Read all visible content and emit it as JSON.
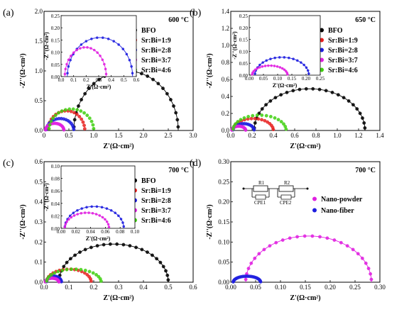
{
  "chart_data": [
    {
      "type": "scatter",
      "panel_label": "(a)",
      "annotation": "600 °C",
      "xlabel": "Z'(Ω·cm²)",
      "ylabel": "-Z''(Ω·cm²)",
      "xlim": [
        0,
        3.0
      ],
      "ylim": [
        0,
        2.0
      ],
      "xticks": [
        "0",
        "0.5",
        "1.0",
        "1.5",
        "2.0",
        "2.5",
        "3.0"
      ],
      "yticks": [
        "0.0",
        "0.5",
        "1.0",
        "1.5",
        "2.0"
      ],
      "legend_position": "top-right",
      "series": [
        {
          "name": "BFO",
          "color": "#000000",
          "arc": [
            0.6,
            2.7,
            1.0
          ]
        },
        {
          "name": "Sr:Bi=1:9",
          "color": "#e8201f",
          "arc": [
            0.08,
            0.82,
            0.33
          ]
        },
        {
          "name": "Sr:Bi=2:8",
          "color": "#1f1fdf",
          "arc": [
            0.05,
            0.6,
            0.2
          ]
        },
        {
          "name": "Sr:Bi=3:7",
          "color": "#e020e0",
          "arc": [
            0.03,
            0.4,
            0.12
          ]
        },
        {
          "name": "Sr:Bi=4:6",
          "color": "#40d010",
          "arc": [
            0.1,
            1.0,
            0.36
          ]
        }
      ],
      "inset": {
        "xlabel": "Z'(Ω·cm²)",
        "ylabel": "-Z''(Ω·cm²)",
        "xlim": [
          0,
          0.6
        ],
        "ylim": [
          0,
          0.25
        ],
        "xticks": [
          "0.0",
          "0.1",
          "0.2",
          "0.3",
          "0.4",
          "0.5",
          "0.6"
        ],
        "yticks": [
          "0.00",
          "0.05",
          "0.10",
          "0.15",
          "0.20",
          "0.25"
        ],
        "series": [
          {
            "name": "Sr:Bi=2:8",
            "color": "#1f1fdf",
            "arc": [
              0.05,
              0.57,
              0.16
            ]
          },
          {
            "name": "Sr:Bi=3:7",
            "color": "#e020e0",
            "arc": [
              0.03,
              0.36,
              0.12
            ]
          }
        ]
      }
    },
    {
      "type": "scatter",
      "panel_label": "(b)",
      "annotation": "650 °C",
      "xlabel": "Z'(Ω·cm²)",
      "ylabel": "-Z''(Ω·cm²)",
      "xlim": [
        0,
        1.4
      ],
      "ylim": [
        0,
        1.4
      ],
      "xticks": [
        "0.0",
        "0.2",
        "0.4",
        "0.6",
        "0.8",
        "1.0",
        "1.2",
        "1.4"
      ],
      "yticks": [
        "0.0",
        "0.2",
        "0.4",
        "0.6",
        "0.8",
        "1.0",
        "1.2",
        "1.4"
      ],
      "legend_position": "top-right",
      "series": [
        {
          "name": "BFO",
          "color": "#000000",
          "arc": [
            0.22,
            1.26,
            0.49
          ]
        },
        {
          "name": "Sr:Bi=1:9",
          "color": "#e8201f",
          "arc": [
            0.02,
            0.4,
            0.14
          ]
        },
        {
          "name": "Sr:Bi=2:8",
          "color": "#1f1fdf",
          "arc": [
            0.02,
            0.22,
            0.08
          ]
        },
        {
          "name": "Sr:Bi=3:7",
          "color": "#e020e0",
          "arc": [
            0.01,
            0.14,
            0.05
          ]
        },
        {
          "name": "Sr:Bi=4:6",
          "color": "#40d010",
          "arc": [
            0.02,
            0.52,
            0.18
          ]
        }
      ],
      "inset": {
        "xlabel": "Z'(Ω·cm²)",
        "ylabel": "-Z''(Ω·cm²)",
        "xlim": [
          0,
          0.25
        ],
        "ylim": [
          0,
          0.25
        ],
        "xticks": [
          "0.00",
          "0.05",
          "0.10",
          "0.15",
          "0.20",
          "0.25"
        ],
        "yticks": [
          "0.00",
          "0.05",
          "0.10",
          "0.15",
          "0.20",
          "0.25"
        ],
        "series": [
          {
            "name": "Sr:Bi=2:8",
            "color": "#1f1fdf",
            "arc": [
              0.02,
              0.21,
              0.075
            ]
          },
          {
            "name": "Sr:Bi=3:7",
            "color": "#e020e0",
            "arc": [
              0.01,
              0.135,
              0.04
            ]
          }
        ]
      }
    },
    {
      "type": "scatter",
      "panel_label": "(c)",
      "annotation": "700 °C",
      "xlabel": "Z'(Ω·cm²)",
      "ylabel": "-Z''(Ω·cm²)",
      "xlim": [
        0,
        0.6
      ],
      "ylim": [
        0,
        0.6
      ],
      "xticks": [
        "0.0",
        "0.1",
        "0.2",
        "0.3",
        "0.4",
        "0.5",
        "0.6"
      ],
      "yticks": [
        "0.0",
        "0.1",
        "0.2",
        "0.3",
        "0.4",
        "0.5",
        "0.6"
      ],
      "legend_position": "top-right",
      "series": [
        {
          "name": "BFO",
          "color": "#000000",
          "arc": [
            0.06,
            0.5,
            0.19
          ]
        },
        {
          "name": "Sr:Bi=1:9",
          "color": "#e8201f",
          "arc": [
            0.01,
            0.19,
            0.065
          ]
        },
        {
          "name": "Sr:Bi=2:8",
          "color": "#1f1fdf",
          "arc": [
            0.01,
            0.07,
            0.03
          ]
        },
        {
          "name": "Sr:Bi=3:7",
          "color": "#e020e0",
          "arc": [
            0.005,
            0.06,
            0.02
          ]
        },
        {
          "name": "Sr:Bi=4:6",
          "color": "#40d010",
          "arc": [
            0.01,
            0.23,
            0.065
          ]
        }
      ],
      "inset": {
        "xlabel": "Z'(Ω·cm²)",
        "ylabel": "-Z''(Ω·cm²)",
        "xlim": [
          0,
          0.1
        ],
        "ylim": [
          0,
          0.1
        ],
        "xticks": [
          "0.00",
          "0.02",
          "0.04",
          "0.06",
          "0.08",
          "0.10"
        ],
        "yticks": [
          "0.00",
          "0.02",
          "0.04",
          "0.06",
          "0.08",
          "0.10"
        ],
        "series": [
          {
            "name": "Sr:Bi=2:8",
            "color": "#1f1fdf",
            "arc": [
              0.005,
              0.085,
              0.035
            ]
          },
          {
            "name": "Sr:Bi=3:7",
            "color": "#e020e0",
            "arc": [
              0.005,
              0.065,
              0.025
            ]
          }
        ]
      }
    },
    {
      "type": "scatter",
      "panel_label": "(d)",
      "annotation": "700 °C",
      "xlabel": "Z'(Ω·cm²)",
      "ylabel": "-Z''(Ω·cm²)",
      "xlim": [
        0,
        0.3
      ],
      "ylim": [
        0,
        0.3
      ],
      "xticks": [
        "0.00",
        "0.05",
        "0.10",
        "0.15",
        "0.20",
        "0.25",
        "0.30"
      ],
      "yticks": [
        "0.00",
        "0.05",
        "0.10",
        "0.15",
        "0.20",
        "0.25",
        "0.30"
      ],
      "legend_position": "right",
      "circuit": {
        "r1": "R1",
        "r2": "R2",
        "cpe1": "CPE1",
        "cpe2": "CPE2"
      },
      "series": [
        {
          "name": "Nano-powder",
          "color": "#e020e0",
          "arc": [
            0.03,
            0.283,
            0.115
          ]
        },
        {
          "name": "Nano-fiber",
          "color": "#1f1fdf",
          "arc": [
            0.005,
            0.06,
            0.015
          ]
        }
      ]
    }
  ]
}
